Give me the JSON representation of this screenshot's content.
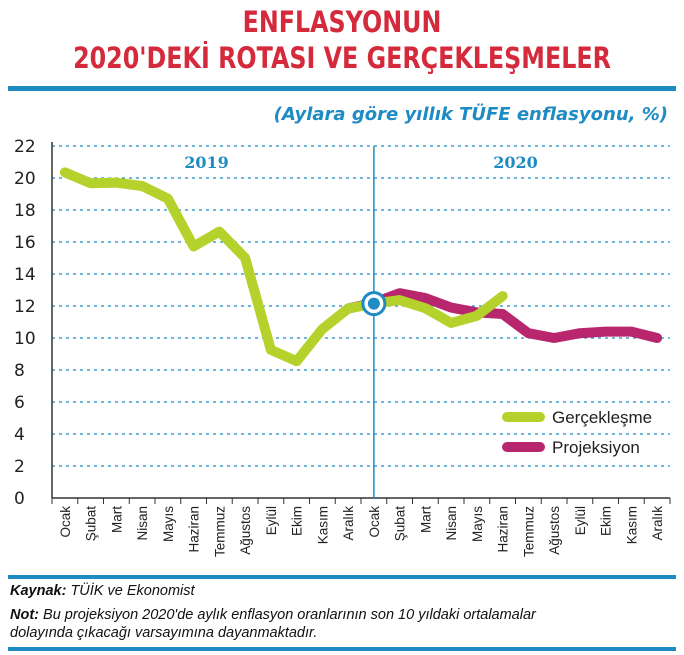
{
  "title_line1": "ENFLASYONUN",
  "title_line2": "2020'DEKİ ROTASI VE GERÇEKLEŞMELER",
  "subtitle": "(Aylara göre yıllık TÜFE enflasyonu, %)",
  "footer": {
    "source_label": "Kaynak:",
    "source_text": "TÜİK ve Ekonomist",
    "note_label": "Not:",
    "note_text_line1": "Bu projeksiyon 2020'de aylık enflasyon oranlarının son 10 yıldaki ortalamalar",
    "note_text_line2": "dolayında çıkacağı varsayımına dayanmaktadır."
  },
  "colors": {
    "title": "#d42a3c",
    "accent": "#1e8bc3",
    "actual": "#b5d22c",
    "projection": "#b8276e"
  },
  "chart_data": {
    "type": "line",
    "year_labels": [
      "2019",
      "2020"
    ],
    "categories": [
      "Ocak",
      "Şubat",
      "Mart",
      "Nisan",
      "Mayıs",
      "Haziran",
      "Temmuz",
      "Ağustos",
      "Eylül",
      "Ekim",
      "Kasım",
      "Aralık",
      "Ocak",
      "Şubat",
      "Mart",
      "Nisan",
      "Mayıs",
      "Haziran",
      "Temmuz",
      "Ağustos",
      "Eylül",
      "Ekim",
      "Kasım",
      "Aralık"
    ],
    "series": [
      {
        "name": "Gerçekleşme",
        "color": "#b5d22c",
        "values": [
          20.35,
          19.67,
          19.71,
          19.5,
          18.71,
          15.72,
          16.65,
          15.01,
          9.26,
          8.55,
          10.56,
          11.84,
          12.15,
          12.37,
          11.86,
          10.94,
          11.39,
          12.62,
          null,
          null,
          null,
          null,
          null,
          null
        ]
      },
      {
        "name": "Projeksiyon",
        "color": "#b8276e",
        "values": [
          null,
          null,
          null,
          null,
          null,
          null,
          null,
          null,
          null,
          null,
          null,
          11.84,
          12.2,
          12.8,
          12.5,
          11.9,
          11.6,
          11.5,
          10.3,
          10.0,
          10.3,
          10.4,
          10.4,
          10.0
        ]
      }
    ],
    "yticks": [
      0,
      2,
      4,
      6,
      8,
      10,
      12,
      14,
      16,
      18,
      20,
      22
    ],
    "ylim": [
      0,
      22
    ],
    "grid": true,
    "legend_position": "bottom-right",
    "highlight_index": 12
  }
}
